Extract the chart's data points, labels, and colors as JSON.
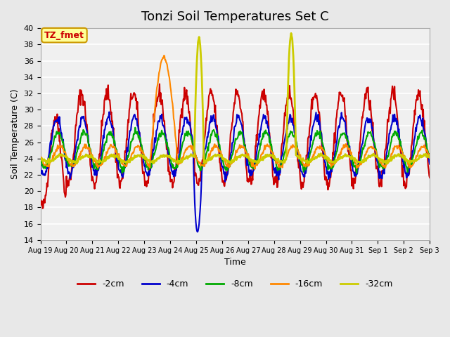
{
  "title": "Tonzi Soil Temperatures Set C",
  "xlabel": "Time",
  "ylabel": "Soil Temperature (C)",
  "ylim": [
    14,
    40
  ],
  "yticks": [
    14,
    16,
    18,
    20,
    22,
    24,
    26,
    28,
    30,
    32,
    34,
    36,
    38,
    40
  ],
  "bg_color": "#e8e8e8",
  "plot_bg": "#f0f0f0",
  "annotation_text": "TZ_fmet",
  "annotation_color": "#cc0000",
  "annotation_bg": "#ffff99",
  "annotation_border": "#cc9900",
  "series": {
    "-2cm": {
      "color": "#cc0000",
      "lw": 1.5
    },
    "-4cm": {
      "color": "#0000cc",
      "lw": 1.5
    },
    "-8cm": {
      "color": "#00aa00",
      "lw": 1.5
    },
    "-16cm": {
      "color": "#ff8800",
      "lw": 1.5
    },
    "-32cm": {
      "color": "#cccc00",
      "lw": 2.0
    }
  },
  "n_days": 15,
  "xtick_labels": [
    "Aug 19",
    "Aug 20",
    "Aug 21",
    "Aug 22",
    "Aug 23",
    "Aug 24",
    "Aug 25",
    "Aug 26",
    "Aug 27",
    "Aug 28",
    "Aug 29",
    "Aug 30",
    "Aug 31",
    "Sep 1",
    "Sep 2",
    "Sep 3"
  ]
}
